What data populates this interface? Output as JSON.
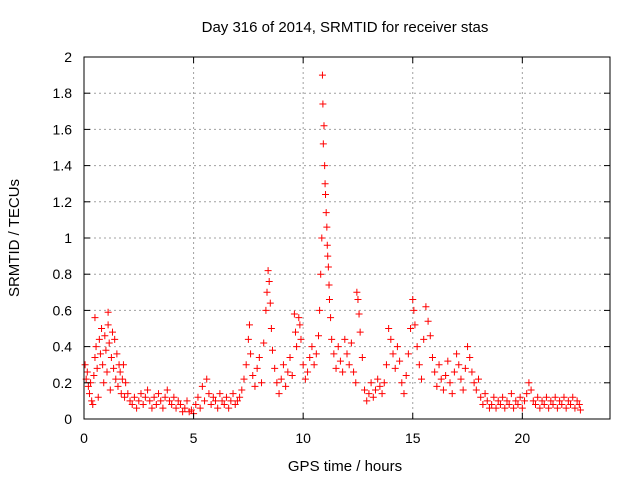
{
  "chart_data": {
    "type": "scatter",
    "title": "Day 316 of 2014, SRMTID for receiver stas",
    "xlabel": "GPS time / hours",
    "ylabel": "SRMTID / TECUs",
    "xlim": [
      0,
      24
    ],
    "ylim": [
      0,
      2
    ],
    "xticks": [
      0,
      5,
      10,
      15,
      20
    ],
    "yticks": [
      0,
      0.2,
      0.4,
      0.6,
      0.8,
      1,
      1.2,
      1.4,
      1.6,
      1.8,
      2
    ],
    "xtick_labels": [
      "0",
      "5",
      "10",
      "15",
      "20"
    ],
    "ytick_labels": [
      "0",
      "0.2",
      "0.4",
      "0.6",
      "0.8",
      "1",
      "1.2",
      "1.4",
      "1.6",
      "1.8",
      "2"
    ],
    "grid": true,
    "marker": "plus",
    "color": "#ff0000",
    "series": [
      {
        "name": "stas",
        "points": [
          [
            0.05,
            0.3
          ],
          [
            0.1,
            0.22
          ],
          [
            0.15,
            0.26
          ],
          [
            0.2,
            0.18
          ],
          [
            0.25,
            0.14
          ],
          [
            0.3,
            0.2
          ],
          [
            0.35,
            0.1
          ],
          [
            0.4,
            0.08
          ],
          [
            0.45,
            0.24
          ],
          [
            0.5,
            0.34
          ],
          [
            0.5,
            0.56
          ],
          [
            0.55,
            0.4
          ],
          [
            0.6,
            0.28
          ],
          [
            0.65,
            0.12
          ],
          [
            0.7,
            0.44
          ],
          [
            0.75,
            0.36
          ],
          [
            0.8,
            0.5
          ],
          [
            0.85,
            0.3
          ],
          [
            0.9,
            0.2
          ],
          [
            0.95,
            0.46
          ],
          [
            1.0,
            0.38
          ],
          [
            1.05,
            0.26
          ],
          [
            1.1,
            0.52
          ],
          [
            1.1,
            0.59
          ],
          [
            1.15,
            0.42
          ],
          [
            1.2,
            0.16
          ],
          [
            1.25,
            0.34
          ],
          [
            1.3,
            0.48
          ],
          [
            1.35,
            0.28
          ],
          [
            1.4,
            0.44
          ],
          [
            1.45,
            0.22
          ],
          [
            1.5,
            0.36
          ],
          [
            1.55,
            0.18
          ],
          [
            1.6,
            0.3
          ],
          [
            1.65,
            0.26
          ],
          [
            1.7,
            0.14
          ],
          [
            1.75,
            0.22
          ],
          [
            1.8,
            0.3
          ],
          [
            1.85,
            0.12
          ],
          [
            1.9,
            0.2
          ],
          [
            2.0,
            0.14
          ],
          [
            2.1,
            0.1
          ],
          [
            2.2,
            0.08
          ],
          [
            2.3,
            0.12
          ],
          [
            2.4,
            0.06
          ],
          [
            2.5,
            0.1
          ],
          [
            2.6,
            0.14
          ],
          [
            2.7,
            0.08
          ],
          [
            2.8,
            0.12
          ],
          [
            2.9,
            0.16
          ],
          [
            3.0,
            0.1
          ],
          [
            3.1,
            0.06
          ],
          [
            3.2,
            0.12
          ],
          [
            3.3,
            0.08
          ],
          [
            3.4,
            0.14
          ],
          [
            3.5,
            0.1
          ],
          [
            3.6,
            0.06
          ],
          [
            3.7,
            0.12
          ],
          [
            3.8,
            0.16
          ],
          [
            3.9,
            0.1
          ],
          [
            4.0,
            0.08
          ],
          [
            4.1,
            0.12
          ],
          [
            4.2,
            0.06
          ],
          [
            4.3,
            0.1
          ],
          [
            4.4,
            0.08
          ],
          [
            4.5,
            0.04
          ],
          [
            4.6,
            0.06
          ],
          [
            4.7,
            0.1
          ],
          [
            4.8,
            0.04
          ],
          [
            4.9,
            0.05
          ],
          [
            5.0,
            0.03
          ],
          [
            5.1,
            0.08
          ],
          [
            5.2,
            0.12
          ],
          [
            5.3,
            0.06
          ],
          [
            5.4,
            0.18
          ],
          [
            5.5,
            0.1
          ],
          [
            5.6,
            0.22
          ],
          [
            5.7,
            0.14
          ],
          [
            5.8,
            0.08
          ],
          [
            5.9,
            0.12
          ],
          [
            6.0,
            0.1
          ],
          [
            6.1,
            0.06
          ],
          [
            6.2,
            0.14
          ],
          [
            6.3,
            0.1
          ],
          [
            6.4,
            0.08
          ],
          [
            6.5,
            0.12
          ],
          [
            6.6,
            0.06
          ],
          [
            6.7,
            0.1
          ],
          [
            6.8,
            0.14
          ],
          [
            6.9,
            0.08
          ],
          [
            7.0,
            0.1
          ],
          [
            7.1,
            0.12
          ],
          [
            7.2,
            0.16
          ],
          [
            7.3,
            0.22
          ],
          [
            7.4,
            0.3
          ],
          [
            7.5,
            0.44
          ],
          [
            7.55,
            0.52
          ],
          [
            7.6,
            0.36
          ],
          [
            7.7,
            0.24
          ],
          [
            7.8,
            0.18
          ],
          [
            7.9,
            0.28
          ],
          [
            8.0,
            0.34
          ],
          [
            8.1,
            0.2
          ],
          [
            8.2,
            0.42
          ],
          [
            8.3,
            0.6
          ],
          [
            8.35,
            0.7
          ],
          [
            8.4,
            0.82
          ],
          [
            8.45,
            0.76
          ],
          [
            8.5,
            0.64
          ],
          [
            8.55,
            0.5
          ],
          [
            8.6,
            0.38
          ],
          [
            8.7,
            0.28
          ],
          [
            8.8,
            0.2
          ],
          [
            8.9,
            0.14
          ],
          [
            9.0,
            0.22
          ],
          [
            9.1,
            0.3
          ],
          [
            9.2,
            0.18
          ],
          [
            9.3,
            0.26
          ],
          [
            9.4,
            0.34
          ],
          [
            9.5,
            0.24
          ],
          [
            9.6,
            0.58
          ],
          [
            9.65,
            0.48
          ],
          [
            9.7,
            0.4
          ],
          [
            9.8,
            0.56
          ],
          [
            9.85,
            0.52
          ],
          [
            9.9,
            0.44
          ],
          [
            10.0,
            0.3
          ],
          [
            10.1,
            0.22
          ],
          [
            10.2,
            0.26
          ],
          [
            10.3,
            0.34
          ],
          [
            10.4,
            0.4
          ],
          [
            10.5,
            0.3
          ],
          [
            10.6,
            0.36
          ],
          [
            10.7,
            0.46
          ],
          [
            10.75,
            0.6
          ],
          [
            10.8,
            0.8
          ],
          [
            10.85,
            1.0
          ],
          [
            10.88,
            1.9
          ],
          [
            10.9,
            1.74
          ],
          [
            10.92,
            1.52
          ],
          [
            10.95,
            1.62
          ],
          [
            10.98,
            1.4
          ],
          [
            11.0,
            1.3
          ],
          [
            11.02,
            1.24
          ],
          [
            11.05,
            1.14
          ],
          [
            11.08,
            1.06
          ],
          [
            11.1,
            0.96
          ],
          [
            11.12,
            0.9
          ],
          [
            11.15,
            0.84
          ],
          [
            11.18,
            0.74
          ],
          [
            11.2,
            0.66
          ],
          [
            11.25,
            0.56
          ],
          [
            11.3,
            0.44
          ],
          [
            11.4,
            0.36
          ],
          [
            11.5,
            0.28
          ],
          [
            11.6,
            0.4
          ],
          [
            11.7,
            0.32
          ],
          [
            11.8,
            0.26
          ],
          [
            11.9,
            0.44
          ],
          [
            12.0,
            0.36
          ],
          [
            12.1,
            0.3
          ],
          [
            12.2,
            0.42
          ],
          [
            12.3,
            0.26
          ],
          [
            12.4,
            0.2
          ],
          [
            12.45,
            0.7
          ],
          [
            12.5,
            0.66
          ],
          [
            12.55,
            0.58
          ],
          [
            12.6,
            0.48
          ],
          [
            12.7,
            0.34
          ],
          [
            12.8,
            0.16
          ],
          [
            12.9,
            0.1
          ],
          [
            13.0,
            0.14
          ],
          [
            13.1,
            0.2
          ],
          [
            13.2,
            0.12
          ],
          [
            13.3,
            0.16
          ],
          [
            13.4,
            0.22
          ],
          [
            13.5,
            0.18
          ],
          [
            13.6,
            0.14
          ],
          [
            13.7,
            0.2
          ],
          [
            13.8,
            0.3
          ],
          [
            13.9,
            0.5
          ],
          [
            14.0,
            0.44
          ],
          [
            14.1,
            0.36
          ],
          [
            14.2,
            0.28
          ],
          [
            14.3,
            0.4
          ],
          [
            14.4,
            0.32
          ],
          [
            14.5,
            0.2
          ],
          [
            14.6,
            0.14
          ],
          [
            14.7,
            0.24
          ],
          [
            14.8,
            0.36
          ],
          [
            14.9,
            0.5
          ],
          [
            15.0,
            0.66
          ],
          [
            15.05,
            0.6
          ],
          [
            15.1,
            0.52
          ],
          [
            15.2,
            0.4
          ],
          [
            15.3,
            0.3
          ],
          [
            15.4,
            0.22
          ],
          [
            15.5,
            0.44
          ],
          [
            15.6,
            0.62
          ],
          [
            15.7,
            0.54
          ],
          [
            15.8,
            0.46
          ],
          [
            15.9,
            0.34
          ],
          [
            16.0,
            0.26
          ],
          [
            16.1,
            0.18
          ],
          [
            16.2,
            0.3
          ],
          [
            16.3,
            0.22
          ],
          [
            16.4,
            0.16
          ],
          [
            16.5,
            0.24
          ],
          [
            16.6,
            0.32
          ],
          [
            16.7,
            0.2
          ],
          [
            16.8,
            0.14
          ],
          [
            16.9,
            0.26
          ],
          [
            17.0,
            0.36
          ],
          [
            17.1,
            0.3
          ],
          [
            17.2,
            0.22
          ],
          [
            17.3,
            0.16
          ],
          [
            17.4,
            0.28
          ],
          [
            17.5,
            0.4
          ],
          [
            17.6,
            0.34
          ],
          [
            17.7,
            0.26
          ],
          [
            17.8,
            0.2
          ],
          [
            17.9,
            0.16
          ],
          [
            18.0,
            0.22
          ],
          [
            18.1,
            0.12
          ],
          [
            18.2,
            0.08
          ],
          [
            18.3,
            0.14
          ],
          [
            18.4,
            0.1
          ],
          [
            18.5,
            0.06
          ],
          [
            18.6,
            0.08
          ],
          [
            18.7,
            0.12
          ],
          [
            18.8,
            0.06
          ],
          [
            18.9,
            0.1
          ],
          [
            19.0,
            0.08
          ],
          [
            19.1,
            0.12
          ],
          [
            19.2,
            0.06
          ],
          [
            19.3,
            0.1
          ],
          [
            19.4,
            0.08
          ],
          [
            19.5,
            0.14
          ],
          [
            19.6,
            0.06
          ],
          [
            19.7,
            0.1
          ],
          [
            19.8,
            0.08
          ],
          [
            19.9,
            0.12
          ],
          [
            20.0,
            0.06
          ],
          [
            20.1,
            0.1
          ],
          [
            20.2,
            0.14
          ],
          [
            20.3,
            0.2
          ],
          [
            20.4,
            0.16
          ],
          [
            20.5,
            0.1
          ],
          [
            20.6,
            0.08
          ],
          [
            20.7,
            0.12
          ],
          [
            20.8,
            0.06
          ],
          [
            20.9,
            0.1
          ],
          [
            21.0,
            0.08
          ],
          [
            21.1,
            0.12
          ],
          [
            21.2,
            0.06
          ],
          [
            21.3,
            0.1
          ],
          [
            21.4,
            0.08
          ],
          [
            21.5,
            0.12
          ],
          [
            21.6,
            0.06
          ],
          [
            21.7,
            0.1
          ],
          [
            21.8,
            0.08
          ],
          [
            21.9,
            0.12
          ],
          [
            22.0,
            0.06
          ],
          [
            22.1,
            0.1
          ],
          [
            22.2,
            0.08
          ],
          [
            22.3,
            0.12
          ],
          [
            22.4,
            0.06
          ],
          [
            22.5,
            0.1
          ],
          [
            22.6,
            0.08
          ],
          [
            22.65,
            0.05
          ]
        ]
      }
    ]
  }
}
